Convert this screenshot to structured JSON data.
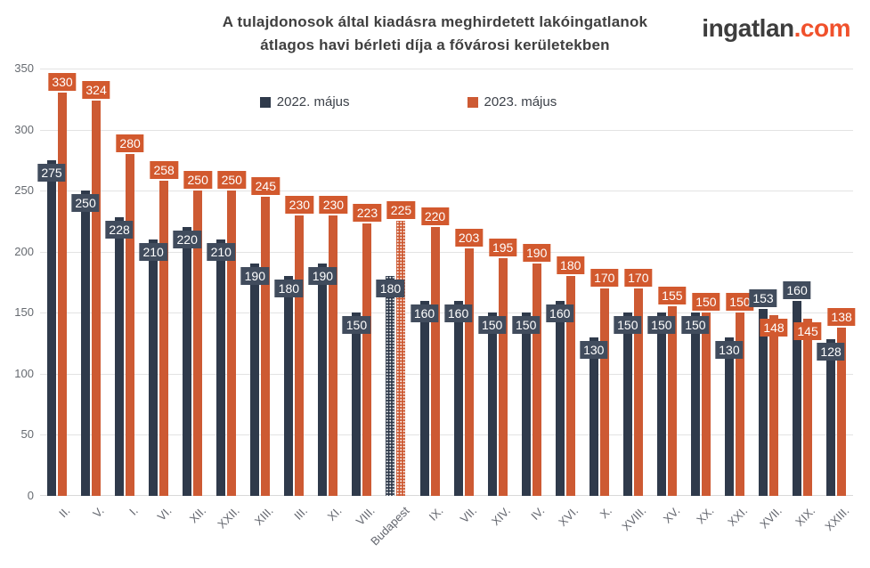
{
  "header": {
    "title": "A tulajdonosok által kiadásra meghirdetett lakóingatlanok\nátlagos havi bérleti díja a fővárosi kerületekben",
    "logo_part1": "ingatlan",
    "logo_part2": ".com"
  },
  "colors": {
    "series_2022_bar": "#2f3a4b",
    "series_2022_label_bg": "#414c5d",
    "series_2023_bar": "#cd5a33",
    "series_2023_label_bg": "#d2592e",
    "title_text": "#3f3f3f",
    "axis_text": "#666a70",
    "gridline": "#e3e3e3",
    "logo_accent": "#f0512c",
    "background": "#ffffff"
  },
  "chart_data": {
    "type": "bar",
    "title": "A tulajdonosok által kiadásra meghirdetett lakóingatlanok átlagos havi bérleti díja a fővárosi kerületekben",
    "xlabel": "",
    "ylabel": "",
    "ylim": [
      0,
      350
    ],
    "y_ticks": [
      0,
      50,
      100,
      150,
      200,
      250,
      300,
      350
    ],
    "grid": true,
    "legend_position": "top",
    "categories": [
      "II.",
      "V.",
      "I.",
      "VI.",
      "XII.",
      "XXII.",
      "XIII.",
      "III.",
      "XI.",
      "VIII.",
      "Budapest",
      "IX.",
      "VII.",
      "XIV.",
      "IV.",
      "XVI.",
      "X.",
      "XVIII.",
      "XV.",
      "XX.",
      "XXI.",
      "XVII.",
      "XIX.",
      "XXIII."
    ],
    "highlighted_category": "Budapest",
    "highlight_style": "dotted-pattern",
    "series": [
      {
        "name": "2022. május",
        "color": "#2f3a4b",
        "label_bg": "#414c5d",
        "values": [
          275,
          250,
          228,
          210,
          220,
          210,
          190,
          180,
          190,
          150,
          180,
          160,
          160,
          150,
          150,
          160,
          130,
          150,
          150,
          150,
          130,
          153,
          160,
          128
        ]
      },
      {
        "name": "2023. május",
        "color": "#cd5a33",
        "label_bg": "#d2592e",
        "values": [
          330,
          324,
          280,
          258,
          250,
          250,
          245,
          230,
          230,
          223,
          225,
          220,
          203,
          195,
          190,
          180,
          170,
          170,
          155,
          150,
          150,
          148,
          145,
          138
        ]
      }
    ]
  }
}
